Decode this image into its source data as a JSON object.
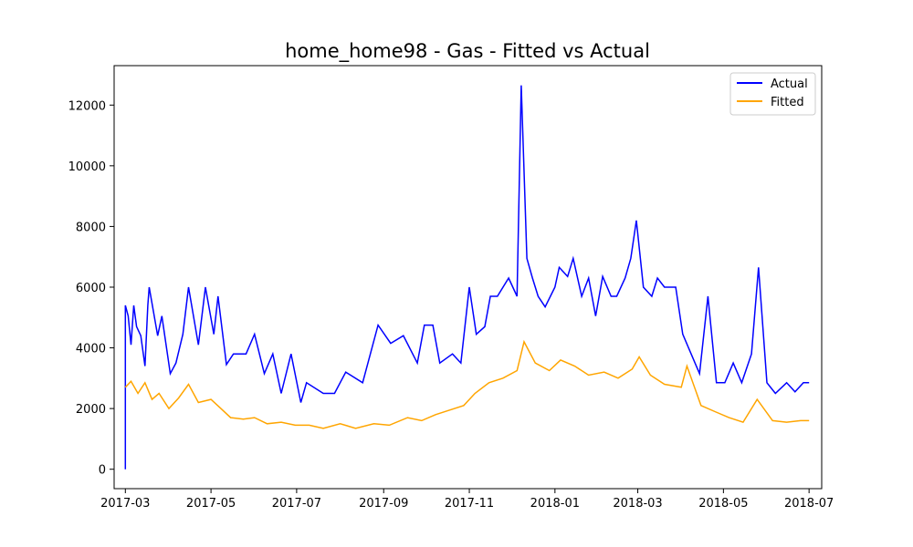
{
  "chart_data": {
    "type": "line",
    "title": "home_home98 - Gas - Fitted vs Actual",
    "xlabel": "",
    "ylabel": "",
    "x_ticks": [
      "2017-03",
      "2017-05",
      "2017-07",
      "2017-09",
      "2017-11",
      "2018-01",
      "2018-03",
      "2018-05",
      "2018-07"
    ],
    "y_ticks": [
      "0",
      "2000",
      "4000",
      "6000",
      "8000",
      "10000",
      "12000"
    ],
    "xlim": [
      "2017-02-21",
      "2018-07-10"
    ],
    "ylim": [
      -640,
      13300
    ],
    "legend": {
      "position": "top-right"
    },
    "series": [
      {
        "name": "Actual",
        "color": "#0000ff",
        "points": [
          [
            "2017-03-01",
            0
          ],
          [
            "2017-03-01",
            5400
          ],
          [
            "2017-03-03",
            5050
          ],
          [
            "2017-03-05",
            4100
          ],
          [
            "2017-03-07",
            5400
          ],
          [
            "2017-03-09",
            4700
          ],
          [
            "2017-03-12",
            4400
          ],
          [
            "2017-03-15",
            3400
          ],
          [
            "2017-03-17",
            5400
          ],
          [
            "2017-03-18",
            6000
          ],
          [
            "2017-03-24",
            4400
          ],
          [
            "2017-03-27",
            5050
          ],
          [
            "2017-04-02",
            3150
          ],
          [
            "2017-04-06",
            3500
          ],
          [
            "2017-04-11",
            4450
          ],
          [
            "2017-04-15",
            6000
          ],
          [
            "2017-04-22",
            4100
          ],
          [
            "2017-04-27",
            6000
          ],
          [
            "2017-05-03",
            4450
          ],
          [
            "2017-05-06",
            5700
          ],
          [
            "2017-05-12",
            3450
          ],
          [
            "2017-05-17",
            3800
          ],
          [
            "2017-05-26",
            3800
          ],
          [
            "2017-06-01",
            4450
          ],
          [
            "2017-06-08",
            3150
          ],
          [
            "2017-06-14",
            3800
          ],
          [
            "2017-06-20",
            2500
          ],
          [
            "2017-06-27",
            3800
          ],
          [
            "2017-07-04",
            2200
          ],
          [
            "2017-07-08",
            2850
          ],
          [
            "2017-07-20",
            2500
          ],
          [
            "2017-07-28",
            2500
          ],
          [
            "2017-08-05",
            3200
          ],
          [
            "2017-08-17",
            2850
          ],
          [
            "2017-08-28",
            4750
          ],
          [
            "2017-09-06",
            4150
          ],
          [
            "2017-09-15",
            4400
          ],
          [
            "2017-09-25",
            3500
          ],
          [
            "2017-09-30",
            4750
          ],
          [
            "2017-10-06",
            4750
          ],
          [
            "2017-10-11",
            3500
          ],
          [
            "2017-10-20",
            3800
          ],
          [
            "2017-10-26",
            3500
          ],
          [
            "2017-11-01",
            6000
          ],
          [
            "2017-11-06",
            4450
          ],
          [
            "2017-11-12",
            4700
          ],
          [
            "2017-11-16",
            5700
          ],
          [
            "2017-11-21",
            5700
          ],
          [
            "2017-11-29",
            6300
          ],
          [
            "2017-12-05",
            5700
          ],
          [
            "2017-12-08",
            12650
          ],
          [
            "2017-12-12",
            6950
          ],
          [
            "2017-12-16",
            6300
          ],
          [
            "2017-12-20",
            5700
          ],
          [
            "2017-12-25",
            5350
          ],
          [
            "2018-01-01",
            6000
          ],
          [
            "2018-01-04",
            6650
          ],
          [
            "2018-01-10",
            6350
          ],
          [
            "2018-01-14",
            6950
          ],
          [
            "2018-01-20",
            5700
          ],
          [
            "2018-01-25",
            6300
          ],
          [
            "2018-01-30",
            5050
          ],
          [
            "2018-02-04",
            6350
          ],
          [
            "2018-02-10",
            5700
          ],
          [
            "2018-02-14",
            5700
          ],
          [
            "2018-02-20",
            6300
          ],
          [
            "2018-02-24",
            6950
          ],
          [
            "2018-02-28",
            8200
          ],
          [
            "2018-03-05",
            6000
          ],
          [
            "2018-03-11",
            5700
          ],
          [
            "2018-03-15",
            6300
          ],
          [
            "2018-03-20",
            6000
          ],
          [
            "2018-03-28",
            6000
          ],
          [
            "2018-04-02",
            4450
          ],
          [
            "2018-04-08",
            3800
          ],
          [
            "2018-04-14",
            3150
          ],
          [
            "2018-04-20",
            5700
          ],
          [
            "2018-04-26",
            2850
          ],
          [
            "2018-05-02",
            2850
          ],
          [
            "2018-05-08",
            3500
          ],
          [
            "2018-05-14",
            2850
          ],
          [
            "2018-05-21",
            3800
          ],
          [
            "2018-05-26",
            6650
          ],
          [
            "2018-06-01",
            2850
          ],
          [
            "2018-06-07",
            2500
          ],
          [
            "2018-06-15",
            2850
          ],
          [
            "2018-06-21",
            2550
          ],
          [
            "2018-06-27",
            2850
          ],
          [
            "2018-07-01",
            2850
          ]
        ]
      },
      {
        "name": "Fitted",
        "color": "#ffa500",
        "points": [
          [
            "2017-03-01",
            2700
          ],
          [
            "2017-03-05",
            2900
          ],
          [
            "2017-03-10",
            2500
          ],
          [
            "2017-03-15",
            2850
          ],
          [
            "2017-03-20",
            2300
          ],
          [
            "2017-03-25",
            2500
          ],
          [
            "2017-04-01",
            2000
          ],
          [
            "2017-04-08",
            2350
          ],
          [
            "2017-04-15",
            2800
          ],
          [
            "2017-04-22",
            2200
          ],
          [
            "2017-05-01",
            2300
          ],
          [
            "2017-05-08",
            2000
          ],
          [
            "2017-05-15",
            1700
          ],
          [
            "2017-05-24",
            1650
          ],
          [
            "2017-06-01",
            1700
          ],
          [
            "2017-06-10",
            1500
          ],
          [
            "2017-06-20",
            1550
          ],
          [
            "2017-06-30",
            1450
          ],
          [
            "2017-07-10",
            1450
          ],
          [
            "2017-07-20",
            1350
          ],
          [
            "2017-08-01",
            1500
          ],
          [
            "2017-08-12",
            1350
          ],
          [
            "2017-08-25",
            1500
          ],
          [
            "2017-09-05",
            1450
          ],
          [
            "2017-09-18",
            1700
          ],
          [
            "2017-09-28",
            1600
          ],
          [
            "2017-10-08",
            1800
          ],
          [
            "2017-10-18",
            1950
          ],
          [
            "2017-10-28",
            2100
          ],
          [
            "2017-11-05",
            2500
          ],
          [
            "2017-11-15",
            2850
          ],
          [
            "2017-11-25",
            3000
          ],
          [
            "2017-12-05",
            3250
          ],
          [
            "2017-12-10",
            4200
          ],
          [
            "2017-12-18",
            3500
          ],
          [
            "2017-12-28",
            3250
          ],
          [
            "2018-01-05",
            3600
          ],
          [
            "2018-01-15",
            3400
          ],
          [
            "2018-01-25",
            3100
          ],
          [
            "2018-02-05",
            3200
          ],
          [
            "2018-02-15",
            3000
          ],
          [
            "2018-02-25",
            3300
          ],
          [
            "2018-03-02",
            3700
          ],
          [
            "2018-03-10",
            3100
          ],
          [
            "2018-03-20",
            2800
          ],
          [
            "2018-04-01",
            2700
          ],
          [
            "2018-04-05",
            3400
          ],
          [
            "2018-04-15",
            2100
          ],
          [
            "2018-04-25",
            1900
          ],
          [
            "2018-05-05",
            1700
          ],
          [
            "2018-05-15",
            1550
          ],
          [
            "2018-05-25",
            2300
          ],
          [
            "2018-06-05",
            1600
          ],
          [
            "2018-06-15",
            1550
          ],
          [
            "2018-06-25",
            1600
          ],
          [
            "2018-07-01",
            1600
          ]
        ]
      }
    ]
  }
}
